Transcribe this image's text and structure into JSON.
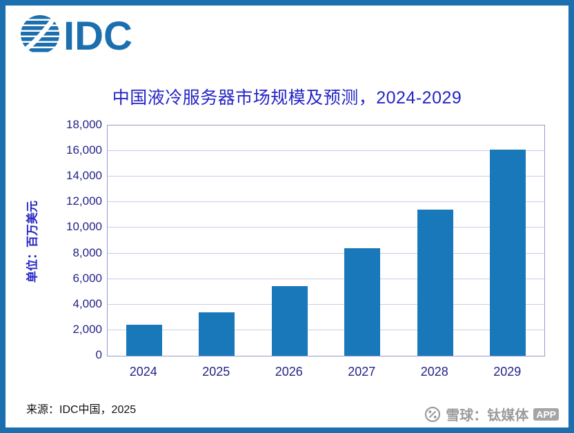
{
  "header": {
    "logo_text": "IDC"
  },
  "chart_data": {
    "type": "bar",
    "title": "中国液冷服务器市场规模及预测，2024-2029",
    "ylabel": "单位：百万美元",
    "xlabel": "",
    "categories": [
      "2024",
      "2025",
      "2026",
      "2027",
      "2028",
      "2029"
    ],
    "values": [
      2400,
      3400,
      5450,
      8400,
      11400,
      16100
    ],
    "ylim": [
      0,
      18000
    ],
    "ytick_step": 2000,
    "grid": true,
    "legend": "none",
    "bar_color": "#1878B9"
  },
  "footer": {
    "source": "来源：IDC中国，2025",
    "watermark": {
      "icon": "xueqiu-percent-icon",
      "text": "雪球：钛媒体",
      "badge": "APP"
    }
  },
  "colors": {
    "frame": "#1C6FAE",
    "title_text": "#2424C6",
    "axis_text": "#232388",
    "grid": "#CBCBE8",
    "bar": "#1878B9",
    "watermark": "#9B9B9B"
  }
}
